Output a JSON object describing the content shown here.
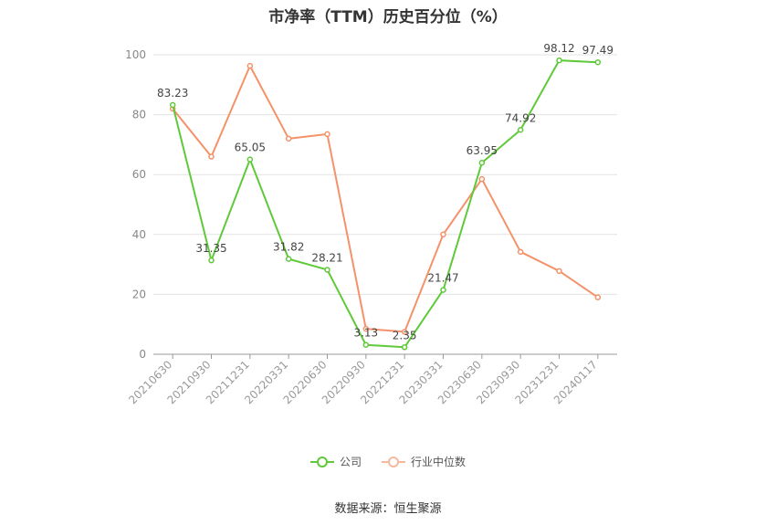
{
  "chart_data": {
    "type": "line",
    "title": "市净率（TTM）历史百分位（%）",
    "categories": [
      "20210630",
      "20210930",
      "20211231",
      "20220331",
      "20220630",
      "20220930",
      "20221231",
      "20230331",
      "20230630",
      "20230930",
      "20231231",
      "20240117"
    ],
    "ylim": [
      0,
      100
    ],
    "yticks": [
      0,
      20,
      40,
      60,
      80,
      100
    ],
    "grid": true,
    "legend_position": "bottom",
    "series": [
      {
        "name": "公司",
        "color": "#5fc93a",
        "values": [
          83.23,
          31.35,
          65.05,
          31.82,
          28.21,
          3.13,
          2.35,
          21.47,
          63.95,
          74.92,
          98.12,
          97.49
        ],
        "labels": [
          "83.23",
          "31.35",
          "65.05",
          "31.82",
          "28.21",
          "3.13",
          "2.35",
          "21.47",
          "63.95",
          "74.92",
          "98.12",
          "97.49"
        ]
      },
      {
        "name": "行业中位数",
        "color": "#f4926a",
        "values": [
          82.0,
          66.0,
          96.3,
          72.0,
          73.5,
          8.5,
          7.5,
          40.0,
          58.5,
          34.2,
          27.8,
          19.0
        ]
      }
    ]
  },
  "source": "数据来源：恒生聚源"
}
